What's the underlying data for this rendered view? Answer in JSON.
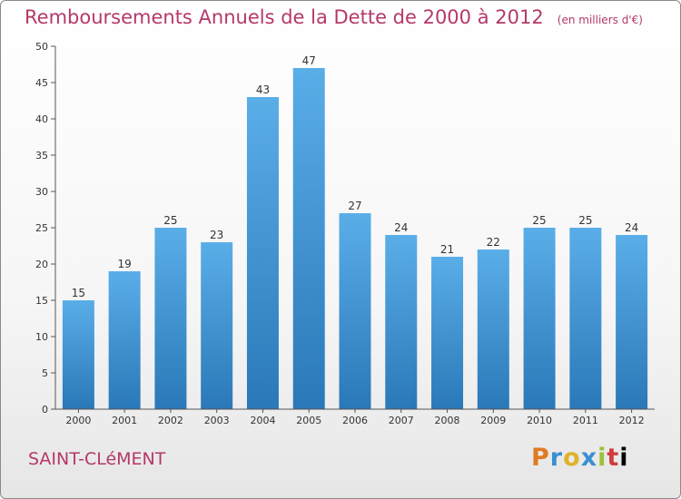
{
  "header": {
    "title": "Remboursements Annuels de la Dette de 2000 à 2012",
    "subtitle": "(en milliers d'€)"
  },
  "footer": {
    "commune": "SAINT-CLéMENT",
    "logo_text": "Proxiti"
  },
  "colors": {
    "accent": "#b5386a",
    "bar_top": "#5aaee8",
    "bar_bottom": "#2a78b8"
  },
  "chart_data": {
    "type": "bar",
    "title": "Remboursements Annuels de la Dette de 2000 à 2012",
    "subtitle": "(en milliers d'€)",
    "xlabel": "",
    "ylabel": "",
    "categories": [
      "2000",
      "2001",
      "2002",
      "2003",
      "2004",
      "2005",
      "2006",
      "2007",
      "2008",
      "2009",
      "2010",
      "2011",
      "2012"
    ],
    "values": [
      15,
      19,
      25,
      23,
      43,
      47,
      27,
      24,
      21,
      22,
      25,
      25,
      24
    ],
    "data_labels": [
      "15",
      "19",
      "25",
      "23",
      "43",
      "47",
      "27",
      "24",
      "21",
      "22",
      "25",
      "25",
      "24"
    ],
    "ylim": [
      0,
      50
    ],
    "yticks": [
      0,
      5,
      10,
      15,
      20,
      25,
      30,
      35,
      40,
      45,
      50
    ],
    "ytick_labels": [
      "0",
      "5",
      "10",
      "15",
      "20",
      "25",
      "30",
      "35",
      "40",
      "45",
      "50"
    ],
    "grid": false,
    "legend": "none"
  }
}
